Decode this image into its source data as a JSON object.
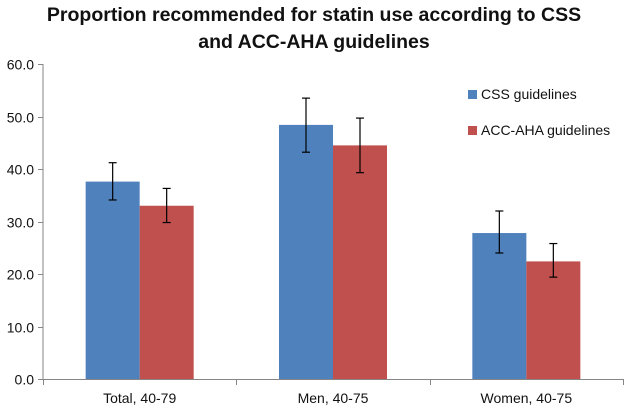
{
  "chart_data": {
    "type": "bar",
    "title_lines": [
      "Proportion recommended for statin use according to CSS",
      "and ACC-AHA guidelines"
    ],
    "categories": [
      "Total, 40-79",
      "Men, 40-75",
      "Women, 40-75"
    ],
    "series": [
      {
        "name": "CSS guidelines",
        "color": "#4F81BD",
        "values": [
          37.6,
          48.4,
          27.8
        ],
        "error_low": [
          34.1,
          43.2,
          24.0
        ],
        "error_high": [
          41.2,
          53.5,
          32.0
        ]
      },
      {
        "name": "ACC-AHA guidelines",
        "color": "#C0504D",
        "values": [
          33.0,
          44.5,
          22.4
        ],
        "error_low": [
          29.8,
          39.3,
          19.4
        ],
        "error_high": [
          36.3,
          49.7,
          25.8
        ]
      }
    ],
    "ylim": [
      0,
      60
    ],
    "yticks": [
      "0.0",
      "10.0",
      "20.0",
      "30.0",
      "40.0",
      "50.0",
      "60.0"
    ],
    "xlabel": "",
    "ylabel": "",
    "legend_position": "top-right",
    "grid": false
  }
}
